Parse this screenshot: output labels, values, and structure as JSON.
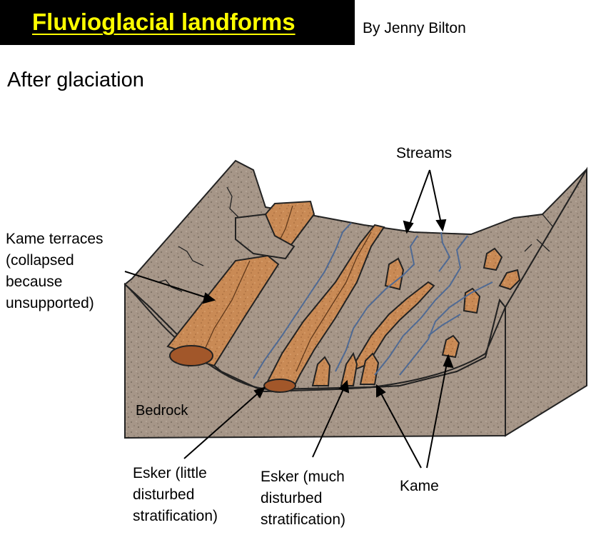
{
  "header": {
    "title": "Fluvioglacial landforms",
    "author": "By Jenny Bilton"
  },
  "subtitle": "After glaciation",
  "labels": {
    "kame_terraces": [
      "Kame terraces",
      "(collapsed",
      "because",
      "unsupported)"
    ],
    "streams": "Streams",
    "bedrock": "Bedrock",
    "esker_little": [
      "Esker (little",
      "disturbed",
      "stratification)"
    ],
    "esker_much": [
      "Esker (much",
      "disturbed",
      "stratification)"
    ],
    "kame": "Kame"
  },
  "colors": {
    "title_bar": "#000000",
    "title_text": "#ffff00",
    "bedrock": "#a69688",
    "deposit": "#c98a55",
    "deposit_outline": "#5a3418",
    "stream": "#4f6a94"
  }
}
